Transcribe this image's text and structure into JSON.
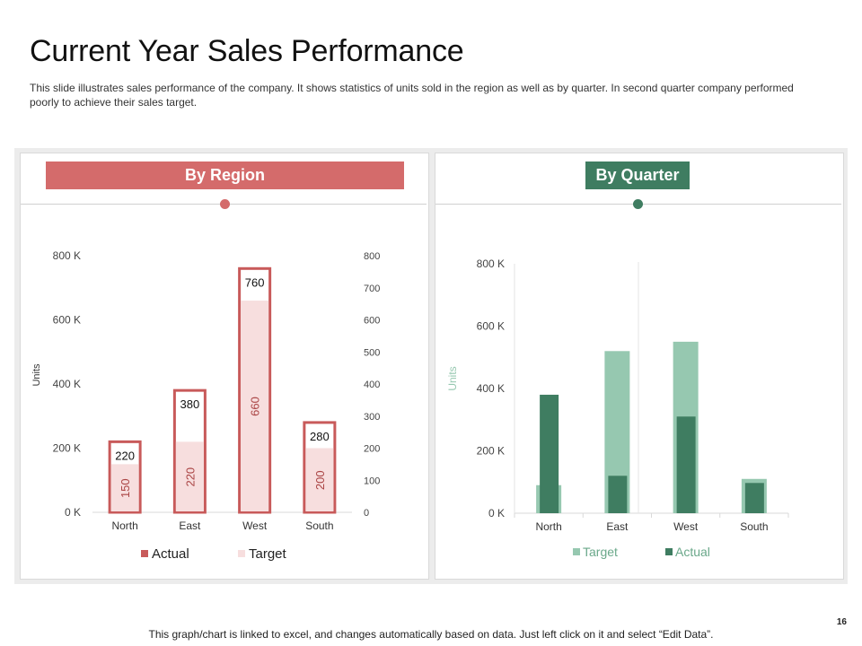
{
  "slide": {
    "title": "Current Year Sales Performance",
    "description": "This slide illustrates sales performance  of the company. It shows statistics of units sold in the region as well as by quarter. In second quarter company performed  poorly to achieve their sales target.",
    "footer": "This graph/chart is linked to excel, and changes automatically based on data. Just left click on it and select “Edit Data”.",
    "page_number": "16"
  },
  "panels": {
    "left_banner": "By Region",
    "right_banner": "By Quarter"
  },
  "colors": {
    "region_accent": "#d46b6b",
    "region_actual": "#c85a5a",
    "region_target": "#f7dede",
    "quarter_accent": "#3f7d61",
    "quarter_actual": "#3f7d61",
    "quarter_target": "#96c8b0"
  },
  "chart_data": [
    {
      "type": "bar",
      "title": "By Region",
      "categories": [
        "North",
        "East",
        "West",
        "South"
      ],
      "series": [
        {
          "name": "Actual",
          "values": [
            220,
            380,
            760,
            280
          ],
          "axis": "secondary"
        },
        {
          "name": "Target",
          "values": [
            150,
            220,
            660,
            200
          ],
          "axis": "primary"
        }
      ],
      "ylabel": "Units",
      "ylim": [
        0,
        800
      ],
      "y_ticks": [
        "0 K",
        "200 K",
        "400 K",
        "600 K",
        "800 K"
      ],
      "y2lim": [
        0,
        800
      ],
      "y2_ticks": [
        "0",
        "100",
        "200",
        "300",
        "400",
        "500",
        "600",
        "700",
        "800"
      ],
      "legend": [
        "Actual",
        "Target"
      ],
      "legend_position": "bottom"
    },
    {
      "type": "bar",
      "title": "By Quarter",
      "categories": [
        "North",
        "East",
        "West",
        "South"
      ],
      "series": [
        {
          "name": "Target",
          "values": [
            90,
            520,
            550,
            110
          ]
        },
        {
          "name": "Actual",
          "values": [
            380,
            120,
            310,
            97
          ]
        }
      ],
      "ylabel": "Units",
      "ylim": [
        0,
        800
      ],
      "y_ticks": [
        "0 K",
        "200 K",
        "400 K",
        "600 K",
        "800 K"
      ],
      "legend": [
        "Target",
        "Actual"
      ],
      "legend_position": "bottom"
    }
  ]
}
